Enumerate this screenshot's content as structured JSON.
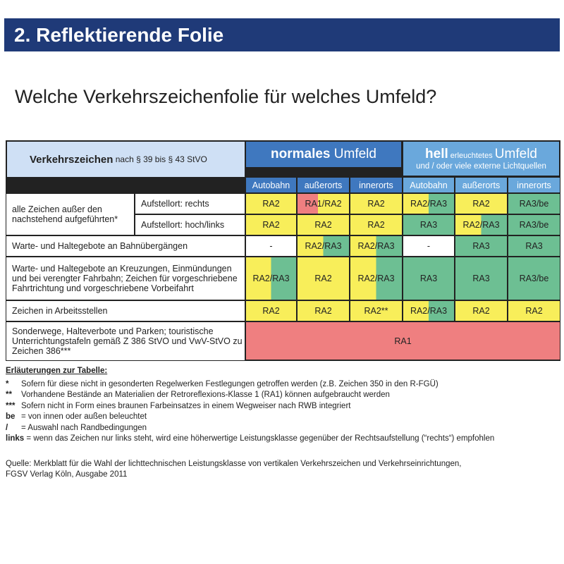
{
  "title": "2. Reflektierende Folie",
  "question": "Welche Verkehrszeichenfolie für welches Umfeld?",
  "colors": {
    "title_bar": "#1f3a78",
    "normal_header": "#3f78bf",
    "bright_header": "#6aa8dc",
    "RA1": "#ef7f80",
    "RA2": "#f8ee5a",
    "RA3": "#6dbf93"
  },
  "table": {
    "header_left_bold": "Verkehrszeichen",
    "header_left_rest": " nach § 39 bis § 43 StVO",
    "normal_bold": "normales",
    "normal_rest": " Umfeld",
    "bright_bold": "hell",
    "bright_small": " erleuchtetes ",
    "bright_rest": "Umfeld",
    "bright_sub": "und / oder viele externe Lichtquellen",
    "subcols": [
      "Autobahn",
      "außerorts",
      "innerorts",
      "Autobahn",
      "außerorts",
      "innerorts"
    ],
    "rows": [
      {
        "label": "alle Zeichen außer den nachstehend aufgeführten*",
        "sublabel": "Aufstellort: rechts",
        "cells": [
          [
            "RA2",
            "yellow"
          ],
          [
            "RA1/RA2",
            "ry"
          ],
          [
            "RA2",
            "yellow"
          ],
          [
            "RA2/RA3",
            "yg"
          ],
          [
            "RA2",
            "yellow"
          ],
          [
            "RA3/be",
            "green"
          ]
        ]
      },
      {
        "label": "",
        "sublabel": "Aufstellort: hoch/links",
        "cells": [
          [
            "RA2",
            "yellow"
          ],
          [
            "RA2",
            "yellow"
          ],
          [
            "RA2",
            "yellow"
          ],
          [
            "RA3",
            "green"
          ],
          [
            "RA2/RA3",
            "yg"
          ],
          [
            "RA3/be",
            "green"
          ]
        ]
      },
      {
        "label": "Warte- und Haltegebote an Bahnübergängen",
        "cells": [
          [
            "-",
            "white"
          ],
          [
            "RA2/RA3",
            "yg"
          ],
          [
            "RA2/RA3",
            "yg"
          ],
          [
            "-",
            "white"
          ],
          [
            "RA3",
            "green"
          ],
          [
            "RA3",
            "green"
          ]
        ]
      },
      {
        "label": "Warte- und Haltegebote an Kreuzungen, Einmündungen und bei verengter Fahrbahn; Zeichen für vorgeschriebene Fahrtrichtung und vorgeschriebene Vorbeifahrt",
        "cells": [
          [
            "RA2/RA3",
            "yg"
          ],
          [
            "RA2",
            "yellow"
          ],
          [
            "RA2/RA3",
            "yg"
          ],
          [
            "RA3",
            "green"
          ],
          [
            "RA3",
            "green"
          ],
          [
            "RA3/be",
            "green"
          ]
        ]
      },
      {
        "label": "Zeichen in Arbeitsstellen",
        "cells": [
          [
            "RA2",
            "yellow"
          ],
          [
            "RA2",
            "yellow"
          ],
          [
            "RA2**",
            "yellow"
          ],
          [
            "RA2/RA3",
            "yg"
          ],
          [
            "RA2",
            "yellow"
          ],
          [
            "RA2",
            "yellow"
          ]
        ]
      },
      {
        "label": "Sonderwege, Halteverbote und Parken; touristische Unterrichtungstafeln gemäß Z 386 StVO und VwV-StVO zu Zeichen 386***",
        "cells": [
          [
            "RA1",
            "red"
          ]
        ]
      }
    ]
  },
  "notes": {
    "heading": "Erläuterungen zur Tabelle:",
    "items": [
      {
        "key": "*",
        "text": "Sofern für diese nicht in gesonderten Regelwerken Festlegungen getroffen werden (z.B. Zeichen 350 in den R-FGÜ)"
      },
      {
        "key": "**",
        "text": "Vorhandene Bestände an Materialien der Retroreflexions-Klasse 1 (RA1) können aufgebraucht werden"
      },
      {
        "key": "***",
        "text": "Sofern nicht in Form eines braunen Farbeinsatzes in einem Wegweiser nach RWB integriert"
      },
      {
        "key": "be",
        "text": "= von innen oder außen beleuchtet"
      },
      {
        "key": "/",
        "text": "= Auswahl nach Randbedingungen"
      },
      {
        "key": "links",
        "text": " = wenn das Zeichen nur links steht, wird eine höherwertige Leistungsklasse gegenüber der Rechtsaufstellung (“rechts“) empfohlen"
      }
    ]
  },
  "source": [
    "Quelle: Merkblatt für die Wahl der lichttechnischen Leistungsklasse von vertikalen Verkehrszeichen und Verkehrseinrichtungen,",
    "FGSV Verlag Köln, Ausgabe 2011"
  ]
}
